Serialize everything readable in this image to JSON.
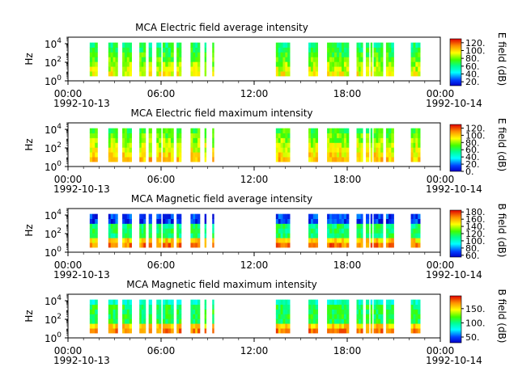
{
  "chart_data": [
    {
      "type": "heatmap",
      "title": "MCA  Electric field average intensity",
      "ylabel": "Hz",
      "y_ticks": [
        {
          "base": "10",
          "exp": "0"
        },
        {
          "base": "10",
          "exp": "2"
        },
        {
          "base": "10",
          "exp": "4"
        }
      ],
      "ylim_log10": [
        0,
        4.7
      ],
      "xlim_hours": [
        0,
        24
      ],
      "x_ticks": [
        {
          "time": "00:00",
          "date": "1992-10-13"
        },
        {
          "time": "06:00",
          "date": ""
        },
        {
          "time": "12:00",
          "date": ""
        },
        {
          "time": "18:00",
          "date": ""
        },
        {
          "time": "00:00",
          "date": "1992-10-14"
        }
      ],
      "colorbar": {
        "label": "E field (dB)",
        "ticks": [
          "20.",
          "40.",
          "60.",
          "80.",
          "100.",
          "120."
        ],
        "range": [
          10,
          130
        ]
      },
      "data_intervals_hours": [
        [
          1.4,
          1.9
        ],
        [
          2.6,
          3.2
        ],
        [
          3.5,
          4.1
        ],
        [
          4.6,
          5.0
        ],
        [
          5.2,
          5.4
        ],
        [
          5.7,
          6.0
        ],
        [
          6.1,
          6.8
        ],
        [
          7.0,
          7.3
        ],
        [
          7.9,
          8.5
        ],
        [
          8.8,
          8.9
        ],
        [
          9.3,
          9.35
        ],
        [
          13.4,
          14.3
        ],
        [
          15.5,
          16.1
        ],
        [
          16.7,
          18.1
        ],
        [
          18.6,
          19.0
        ],
        [
          19.2,
          19.4
        ],
        [
          19.5,
          19.6
        ],
        [
          19.7,
          20.3
        ],
        [
          20.5,
          21.0
        ],
        [
          22.1,
          22.7
        ]
      ],
      "dominant_levels": "low frequencies ~80-110 dB (yellow/orange), high frequencies ~50-70 dB (green/cyan)"
    },
    {
      "type": "heatmap",
      "title": "MCA  Electric field maximum intensity",
      "ylabel": "Hz",
      "y_ticks": [
        {
          "base": "10",
          "exp": "0"
        },
        {
          "base": "10",
          "exp": "2"
        },
        {
          "base": "10",
          "exp": "4"
        }
      ],
      "ylim_log10": [
        0,
        4.7
      ],
      "xlim_hours": [
        0,
        24
      ],
      "x_ticks": [
        {
          "time": "00:00",
          "date": "1992-10-13"
        },
        {
          "time": "06:00",
          "date": ""
        },
        {
          "time": "12:00",
          "date": ""
        },
        {
          "time": "18:00",
          "date": ""
        },
        {
          "time": "00:00",
          "date": "1992-10-14"
        }
      ],
      "colorbar": {
        "label": "E field (dB)",
        "ticks": [
          "0.",
          "20.",
          "40.",
          "60.",
          "80.",
          "100.",
          "120."
        ],
        "range": [
          0,
          130
        ]
      },
      "data_intervals_hours": [
        [
          1.4,
          1.9
        ],
        [
          2.6,
          3.2
        ],
        [
          3.5,
          4.1
        ],
        [
          4.6,
          5.0
        ],
        [
          5.2,
          5.4
        ],
        [
          5.7,
          6.0
        ],
        [
          6.1,
          6.8
        ],
        [
          7.0,
          7.3
        ],
        [
          7.9,
          8.5
        ],
        [
          8.8,
          8.9
        ],
        [
          9.3,
          9.35
        ],
        [
          13.4,
          14.3
        ],
        [
          15.5,
          16.1
        ],
        [
          16.7,
          18.1
        ],
        [
          18.6,
          19.0
        ],
        [
          19.2,
          19.4
        ],
        [
          19.5,
          19.6
        ],
        [
          19.7,
          20.3
        ],
        [
          20.5,
          21.0
        ],
        [
          22.1,
          22.7
        ]
      ],
      "dominant_levels": "low frequencies ~90-120 dB (yellow/orange), high frequencies ~60-80 dB (green)"
    },
    {
      "type": "heatmap",
      "title": "MCA  Magnetic field average intensity",
      "ylabel": "Hz",
      "y_ticks": [
        {
          "base": "10",
          "exp": "0"
        },
        {
          "base": "10",
          "exp": "2"
        },
        {
          "base": "10",
          "exp": "4"
        }
      ],
      "ylim_log10": [
        0,
        4.7
      ],
      "xlim_hours": [
        0,
        24
      ],
      "x_ticks": [
        {
          "time": "00:00",
          "date": "1992-10-13"
        },
        {
          "time": "06:00",
          "date": ""
        },
        {
          "time": "12:00",
          "date": ""
        },
        {
          "time": "18:00",
          "date": ""
        },
        {
          "time": "00:00",
          "date": "1992-10-14"
        }
      ],
      "colorbar": {
        "label": "B field (dB)",
        "ticks": [
          "60.",
          "80.",
          "100.",
          "120.",
          "140.",
          "160.",
          "180."
        ],
        "range": [
          55,
          185
        ]
      },
      "data_intervals_hours": [
        [
          1.4,
          1.9
        ],
        [
          2.6,
          3.2
        ],
        [
          3.5,
          4.1
        ],
        [
          4.6,
          5.0
        ],
        [
          5.2,
          5.4
        ],
        [
          5.7,
          6.0
        ],
        [
          6.1,
          6.8
        ],
        [
          7.0,
          7.3
        ],
        [
          7.9,
          8.5
        ],
        [
          8.8,
          8.9
        ],
        [
          9.3,
          9.35
        ],
        [
          13.4,
          14.3
        ],
        [
          15.5,
          16.1
        ],
        [
          16.7,
          18.1
        ],
        [
          18.6,
          19.0
        ],
        [
          19.2,
          19.4
        ],
        [
          19.5,
          19.6
        ],
        [
          19.7,
          20.3
        ],
        [
          20.5,
          21.0
        ],
        [
          22.1,
          22.7
        ]
      ],
      "dominant_levels": "high frequencies ~70 dB (blue), mid ~110-130 dB (green), low ~150-180 dB (yellow/red)"
    },
    {
      "type": "heatmap",
      "title": "MCA  Magnetic field maximum intensity",
      "ylabel": "Hz",
      "y_ticks": [
        {
          "base": "10",
          "exp": "0"
        },
        {
          "base": "10",
          "exp": "2"
        },
        {
          "base": "10",
          "exp": "4"
        }
      ],
      "ylim_log10": [
        0,
        4.7
      ],
      "xlim_hours": [
        0,
        24
      ],
      "x_ticks": [
        {
          "time": "00:00",
          "date": "1992-10-13"
        },
        {
          "time": "06:00",
          "date": ""
        },
        {
          "time": "12:00",
          "date": ""
        },
        {
          "time": "18:00",
          "date": ""
        },
        {
          "time": "00:00",
          "date": "1992-10-14"
        }
      ],
      "colorbar": {
        "label": "B field (dB)",
        "ticks": [
          "50.",
          "100.",
          "150."
        ],
        "range": [
          30,
          195
        ]
      },
      "data_intervals_hours": [
        [
          1.4,
          1.9
        ],
        [
          2.6,
          3.2
        ],
        [
          3.5,
          4.1
        ],
        [
          4.6,
          5.0
        ],
        [
          5.2,
          5.4
        ],
        [
          5.7,
          6.0
        ],
        [
          6.1,
          6.8
        ],
        [
          7.0,
          7.3
        ],
        [
          7.9,
          8.5
        ],
        [
          8.8,
          8.9
        ],
        [
          9.3,
          9.35
        ],
        [
          13.4,
          14.3
        ],
        [
          15.5,
          16.1
        ],
        [
          16.7,
          18.1
        ],
        [
          18.6,
          19.0
        ],
        [
          19.2,
          19.4
        ],
        [
          19.5,
          19.6
        ],
        [
          19.7,
          20.3
        ],
        [
          20.5,
          21.0
        ],
        [
          22.1,
          22.7
        ]
      ],
      "dominant_levels": "high frequencies ~100 dB (cyan/green), low ~150-180 dB (yellow/red)"
    }
  ]
}
